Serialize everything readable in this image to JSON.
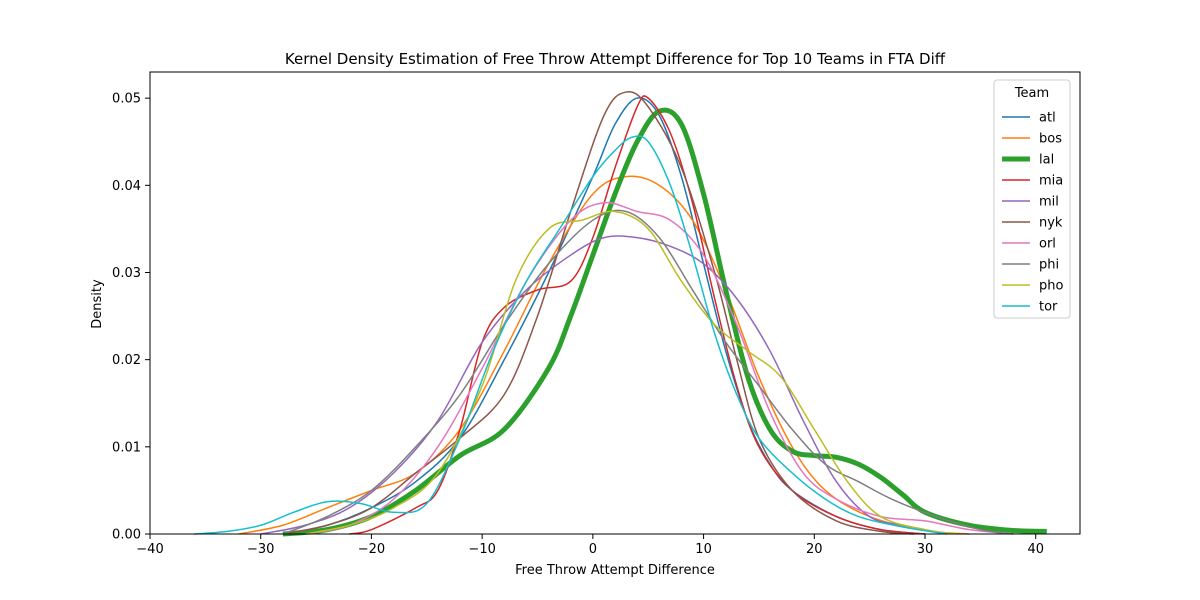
{
  "chart_data": {
    "type": "line",
    "title": "Kernel Density Estimation of Free Throw Attempt Difference for Top 10 Teams in FTA Diff",
    "xlabel": "Free Throw Attempt Difference",
    "ylabel": "Density",
    "xlim": [
      -40,
      44
    ],
    "ylim": [
      0,
      0.053
    ],
    "xticks": [
      -40,
      -30,
      -20,
      -10,
      0,
      10,
      20,
      30,
      40
    ],
    "xtick_labels": [
      "−40",
      "−30",
      "−20",
      "−10",
      "0",
      "10",
      "20",
      "30",
      "40"
    ],
    "yticks": [
      0,
      0.01,
      0.02,
      0.03,
      0.04,
      0.05
    ],
    "ytick_labels": [
      "0.00",
      "0.01",
      "0.02",
      "0.03",
      "0.04",
      "0.05"
    ],
    "grid": false,
    "legend": {
      "title": "Team",
      "position": "top-right"
    },
    "series": [
      {
        "name": "atl",
        "color": "#1f77b4",
        "width": 1.5,
        "points": [
          [
            -28,
            0
          ],
          [
            -24,
            0.001
          ],
          [
            -20,
            0.003
          ],
          [
            -16,
            0.006
          ],
          [
            -12,
            0.011
          ],
          [
            -8,
            0.02
          ],
          [
            -4,
            0.03
          ],
          [
            0,
            0.041
          ],
          [
            2,
            0.047
          ],
          [
            4,
            0.05
          ],
          [
            6,
            0.048
          ],
          [
            8,
            0.041
          ],
          [
            10,
            0.031
          ],
          [
            12,
            0.021
          ],
          [
            14,
            0.013
          ],
          [
            16,
            0.008
          ],
          [
            18,
            0.005
          ],
          [
            22,
            0.002
          ],
          [
            26,
            0.0005
          ],
          [
            30,
            0
          ]
        ]
      },
      {
        "name": "bos",
        "color": "#ff7f0e",
        "width": 1.5,
        "points": [
          [
            -32,
            0
          ],
          [
            -28,
            0.001
          ],
          [
            -24,
            0.003
          ],
          [
            -20,
            0.005
          ],
          [
            -16,
            0.007
          ],
          [
            -12,
            0.012
          ],
          [
            -8,
            0.021
          ],
          [
            -4,
            0.031
          ],
          [
            0,
            0.039
          ],
          [
            3,
            0.041
          ],
          [
            6,
            0.04
          ],
          [
            9,
            0.036
          ],
          [
            12,
            0.028
          ],
          [
            15,
            0.018
          ],
          [
            18,
            0.01
          ],
          [
            21,
            0.005
          ],
          [
            25,
            0.002
          ],
          [
            30,
            0.0004
          ],
          [
            34,
            0
          ]
        ]
      },
      {
        "name": "lal",
        "color": "#2ca02c",
        "width": 5,
        "points": [
          [
            -28,
            0
          ],
          [
            -24,
            0.0005
          ],
          [
            -20,
            0.002
          ],
          [
            -16,
            0.005
          ],
          [
            -12,
            0.009
          ],
          [
            -8,
            0.012
          ],
          [
            -4,
            0.019
          ],
          [
            -2,
            0.025
          ],
          [
            0,
            0.032
          ],
          [
            2,
            0.039
          ],
          [
            4,
            0.045
          ],
          [
            6,
            0.0485
          ],
          [
            8,
            0.047
          ],
          [
            10,
            0.039
          ],
          [
            12,
            0.028
          ],
          [
            14,
            0.018
          ],
          [
            16,
            0.012
          ],
          [
            18,
            0.0095
          ],
          [
            20,
            0.009
          ],
          [
            22,
            0.0088
          ],
          [
            24,
            0.008
          ],
          [
            26,
            0.0065
          ],
          [
            28,
            0.0045
          ],
          [
            30,
            0.0025
          ],
          [
            34,
            0.001
          ],
          [
            38,
            0.0004
          ],
          [
            41,
            0.0003
          ]
        ]
      },
      {
        "name": "mia",
        "color": "#d62728",
        "width": 1.5,
        "points": [
          [
            -22,
            0
          ],
          [
            -20,
            0.0005
          ],
          [
            -16,
            0.003
          ],
          [
            -14,
            0.005
          ],
          [
            -12,
            0.012
          ],
          [
            -10,
            0.022
          ],
          [
            -8,
            0.026
          ],
          [
            -5,
            0.028
          ],
          [
            -2,
            0.029
          ],
          [
            0,
            0.034
          ],
          [
            2,
            0.042
          ],
          [
            4,
            0.049
          ],
          [
            5,
            0.05
          ],
          [
            7,
            0.046
          ],
          [
            9,
            0.038
          ],
          [
            11,
            0.027
          ],
          [
            13,
            0.017
          ],
          [
            15,
            0.01
          ],
          [
            18,
            0.005
          ],
          [
            22,
            0.002
          ],
          [
            26,
            0.0005
          ],
          [
            30,
            0
          ]
        ]
      },
      {
        "name": "mil",
        "color": "#9467bd",
        "width": 1.5,
        "points": [
          [
            -30,
            0
          ],
          [
            -26,
            0.001
          ],
          [
            -22,
            0.003
          ],
          [
            -18,
            0.007
          ],
          [
            -14,
            0.013
          ],
          [
            -10,
            0.022
          ],
          [
            -6,
            0.028
          ],
          [
            -2,
            0.032
          ],
          [
            1,
            0.034
          ],
          [
            4,
            0.034
          ],
          [
            7,
            0.033
          ],
          [
            10,
            0.031
          ],
          [
            13,
            0.027
          ],
          [
            16,
            0.021
          ],
          [
            19,
            0.013
          ],
          [
            22,
            0.006
          ],
          [
            25,
            0.002
          ],
          [
            28,
            0.001
          ],
          [
            32,
            0
          ]
        ]
      },
      {
        "name": "nyk",
        "color": "#8c564b",
        "width": 1.5,
        "points": [
          [
            -28,
            0
          ],
          [
            -24,
            0.001
          ],
          [
            -20,
            0.003
          ],
          [
            -16,
            0.007
          ],
          [
            -12,
            0.011
          ],
          [
            -8,
            0.016
          ],
          [
            -5,
            0.025
          ],
          [
            -2,
            0.037
          ],
          [
            1,
            0.048
          ],
          [
            3,
            0.0507
          ],
          [
            5,
            0.049
          ],
          [
            8,
            0.042
          ],
          [
            11,
            0.03
          ],
          [
            13,
            0.02
          ],
          [
            15,
            0.011
          ],
          [
            18,
            0.005
          ],
          [
            22,
            0.0015
          ],
          [
            26,
            0.0003
          ],
          [
            29,
            0
          ]
        ]
      },
      {
        "name": "orl",
        "color": "#e377c2",
        "width": 1.5,
        "points": [
          [
            -26,
            0
          ],
          [
            -22,
            0.001
          ],
          [
            -18,
            0.004
          ],
          [
            -14,
            0.01
          ],
          [
            -10,
            0.019
          ],
          [
            -6,
            0.029
          ],
          [
            -2,
            0.036
          ],
          [
            1,
            0.038
          ],
          [
            4,
            0.037
          ],
          [
            7,
            0.036
          ],
          [
            10,
            0.032
          ],
          [
            13,
            0.024
          ],
          [
            16,
            0.014
          ],
          [
            19,
            0.007
          ],
          [
            22,
            0.004
          ],
          [
            26,
            0.002
          ],
          [
            30,
            0.0015
          ],
          [
            34,
            0.0005
          ],
          [
            38,
            0
          ]
        ]
      },
      {
        "name": "phi",
        "color": "#7f7f7f",
        "width": 1.5,
        "points": [
          [
            -28,
            0
          ],
          [
            -24,
            0.002
          ],
          [
            -20,
            0.005
          ],
          [
            -16,
            0.01
          ],
          [
            -12,
            0.016
          ],
          [
            -8,
            0.024
          ],
          [
            -4,
            0.031
          ],
          [
            0,
            0.036
          ],
          [
            3,
            0.037
          ],
          [
            6,
            0.034
          ],
          [
            9,
            0.028
          ],
          [
            12,
            0.022
          ],
          [
            15,
            0.017
          ],
          [
            18,
            0.012
          ],
          [
            21,
            0.008
          ],
          [
            24,
            0.006
          ],
          [
            27,
            0.004
          ],
          [
            31,
            0.002
          ],
          [
            35,
            0.0005
          ],
          [
            38,
            0
          ]
        ]
      },
      {
        "name": "pho",
        "color": "#bcbd22",
        "width": 1.5,
        "points": [
          [
            -26,
            0
          ],
          [
            -22,
            0.001
          ],
          [
            -18,
            0.003
          ],
          [
            -14,
            0.007
          ],
          [
            -10,
            0.017
          ],
          [
            -7,
            0.029
          ],
          [
            -4,
            0.035
          ],
          [
            -1,
            0.036
          ],
          [
            2,
            0.037
          ],
          [
            5,
            0.035
          ],
          [
            8,
            0.029
          ],
          [
            11,
            0.024
          ],
          [
            14,
            0.021
          ],
          [
            17,
            0.018
          ],
          [
            20,
            0.012
          ],
          [
            23,
            0.006
          ],
          [
            26,
            0.002
          ],
          [
            30,
            0.0005
          ],
          [
            33,
            0
          ]
        ]
      },
      {
        "name": "tor",
        "color": "#17becf",
        "width": 1.5,
        "points": [
          [
            -36,
            0
          ],
          [
            -33,
            0.0003
          ],
          [
            -30,
            0.001
          ],
          [
            -27,
            0.0025
          ],
          [
            -24,
            0.0037
          ],
          [
            -21,
            0.0035
          ],
          [
            -18,
            0.0025
          ],
          [
            -15,
            0.0035
          ],
          [
            -12,
            0.011
          ],
          [
            -9,
            0.021
          ],
          [
            -6,
            0.029
          ],
          [
            -3,
            0.035
          ],
          [
            0,
            0.041
          ],
          [
            2,
            0.044
          ],
          [
            3.5,
            0.0455
          ],
          [
            5,
            0.045
          ],
          [
            7,
            0.04
          ],
          [
            9,
            0.032
          ],
          [
            11,
            0.023
          ],
          [
            13,
            0.016
          ],
          [
            15,
            0.011
          ],
          [
            18,
            0.007
          ],
          [
            21,
            0.004
          ],
          [
            24,
            0.002
          ],
          [
            28,
            0.0008
          ],
          [
            32,
            0
          ]
        ]
      }
    ]
  }
}
